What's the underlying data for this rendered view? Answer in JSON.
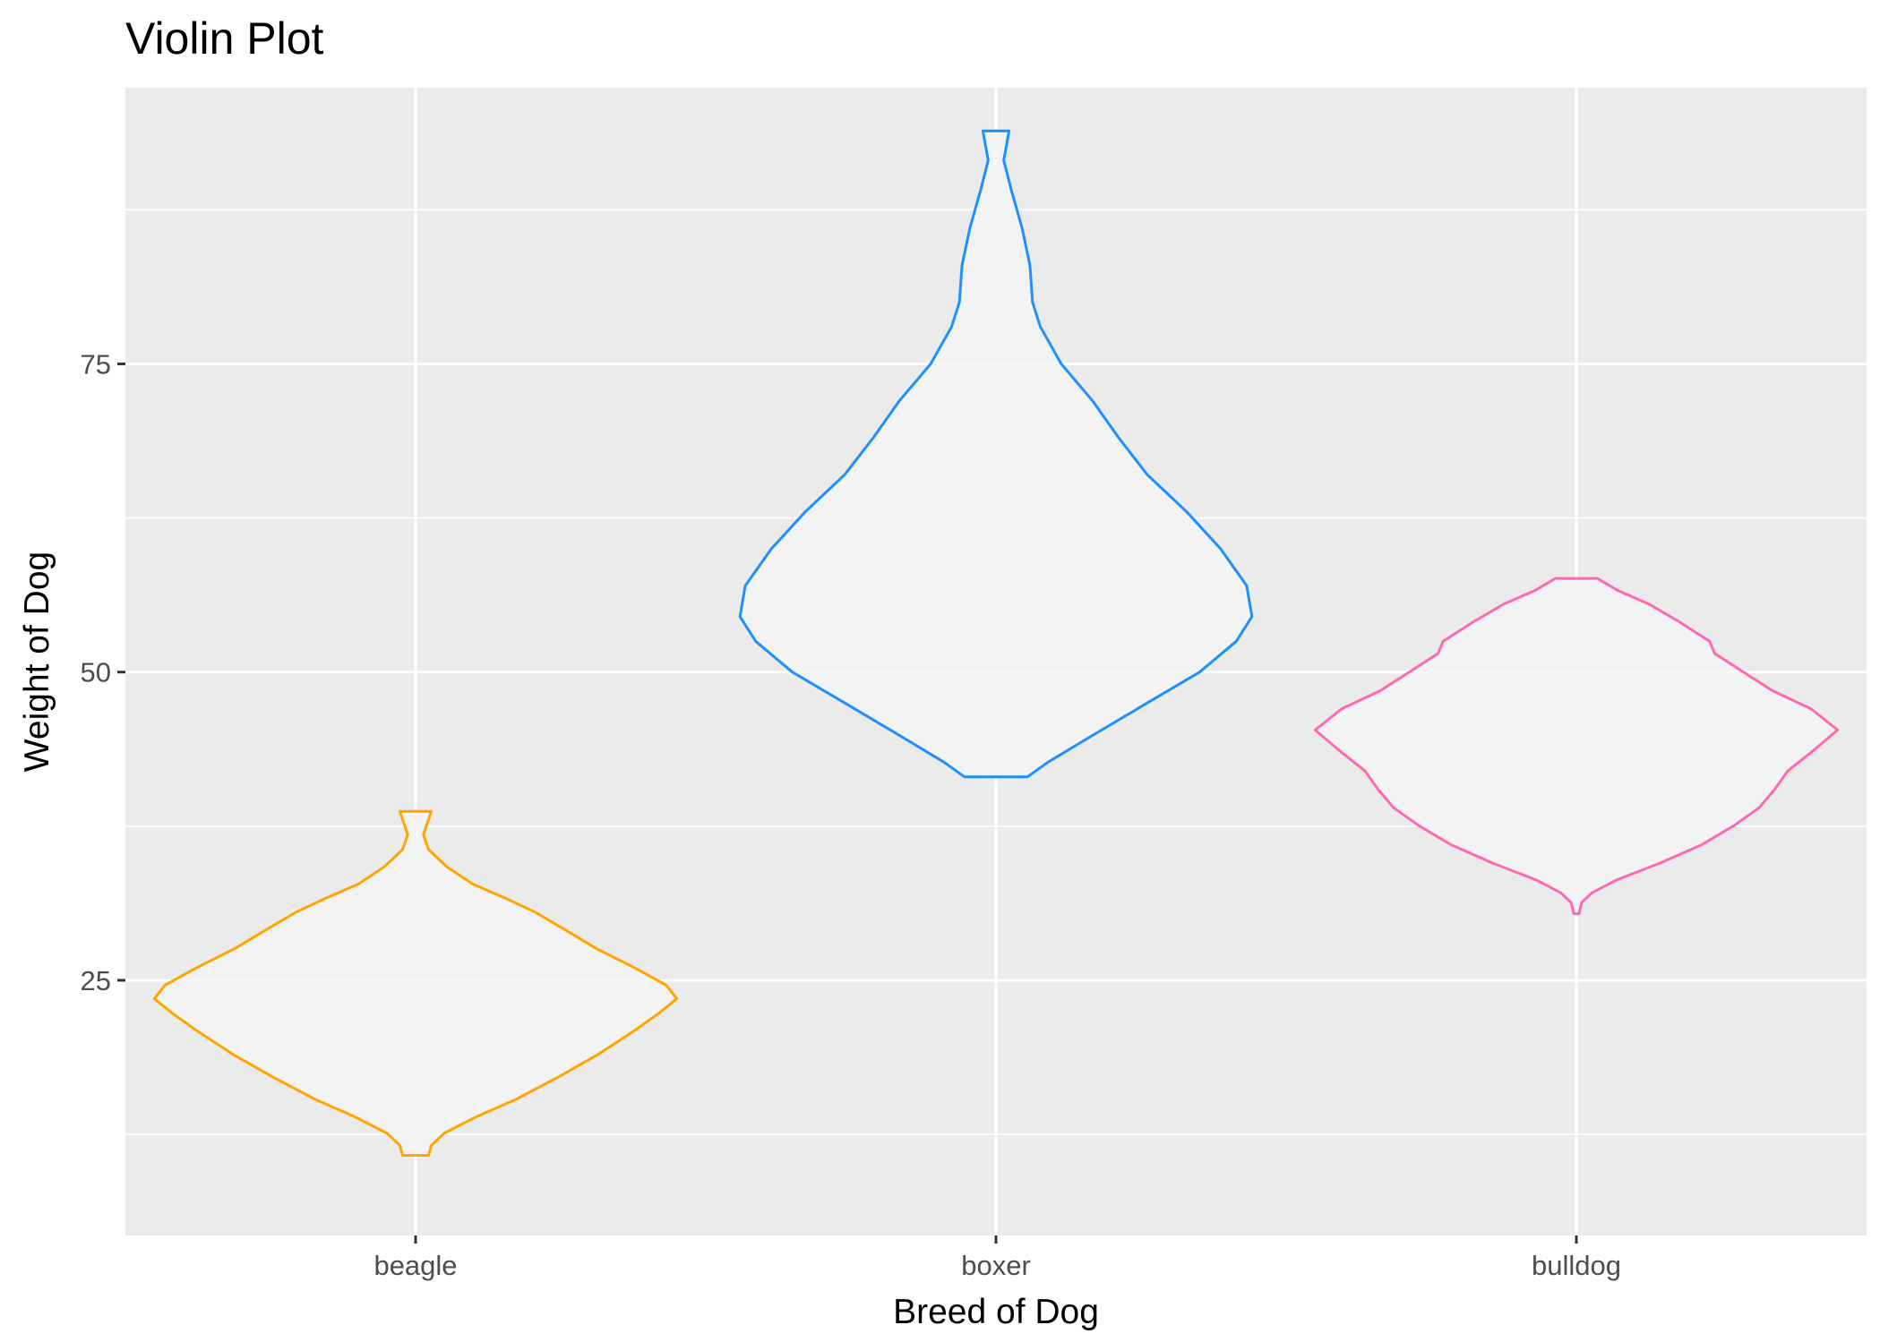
{
  "chart_data": {
    "type": "violin",
    "title": "Violin Plot",
    "xlabel": "Breed of Dog",
    "ylabel": "Weight of Dog",
    "categories": [
      "beagle",
      "boxer",
      "bulldog"
    ],
    "ylim": [
      4.3,
      97.4
    ],
    "yticks": [
      25,
      50,
      75
    ],
    "grid": true,
    "legend": "none",
    "colors": {
      "panel_background": "#EBEBEB",
      "grid": "#FFFFFF",
      "violin_fill": "#F5F5F5"
    },
    "series": [
      {
        "category": "beagle",
        "color": "#FFA500",
        "min": 10.8,
        "max": 38.7,
        "density": [
          [
            10.8,
            0.05
          ],
          [
            11.6,
            0.06
          ],
          [
            12.6,
            0.11
          ],
          [
            13.9,
            0.23
          ],
          [
            15.4,
            0.39
          ],
          [
            17.2,
            0.55
          ],
          [
            19.0,
            0.7
          ],
          [
            20.8,
            0.83
          ],
          [
            22.3,
            0.93
          ],
          [
            23.5,
            1.0
          ],
          [
            24.6,
            0.96
          ],
          [
            26.0,
            0.84
          ],
          [
            27.6,
            0.69
          ],
          [
            29.0,
            0.58
          ],
          [
            30.5,
            0.46
          ],
          [
            31.6,
            0.35
          ],
          [
            32.8,
            0.22
          ],
          [
            34.2,
            0.12
          ],
          [
            35.6,
            0.05
          ],
          [
            36.8,
            0.03
          ],
          [
            38.7,
            0.06
          ]
        ]
      },
      {
        "category": "boxer",
        "color": "#1E90FF",
        "min": 41.5,
        "max": 93.9,
        "density": [
          [
            41.5,
            0.12
          ],
          [
            42.7,
            0.2
          ],
          [
            45.0,
            0.38
          ],
          [
            47.5,
            0.58
          ],
          [
            50.0,
            0.78
          ],
          [
            52.5,
            0.92
          ],
          [
            54.5,
            0.98
          ],
          [
            57.0,
            0.96
          ],
          [
            60.0,
            0.86
          ],
          [
            63.0,
            0.73
          ],
          [
            66.0,
            0.58
          ],
          [
            69.0,
            0.47
          ],
          [
            72.0,
            0.37
          ],
          [
            75.0,
            0.25
          ],
          [
            78.0,
            0.17
          ],
          [
            80.0,
            0.14
          ],
          [
            83.0,
            0.13
          ],
          [
            86.0,
            0.1
          ],
          [
            89.0,
            0.06
          ],
          [
            91.5,
            0.03
          ],
          [
            93.9,
            0.05
          ]
        ]
      },
      {
        "category": "bulldog",
        "color": "#FF69B4",
        "min": 30.4,
        "max": 57.6,
        "density": [
          [
            30.4,
            0.01
          ],
          [
            31.3,
            0.02
          ],
          [
            32.1,
            0.06
          ],
          [
            33.1,
            0.15
          ],
          [
            34.5,
            0.32
          ],
          [
            36.0,
            0.48
          ],
          [
            37.5,
            0.6
          ],
          [
            39.0,
            0.7
          ],
          [
            40.5,
            0.76
          ],
          [
            42.0,
            0.81
          ],
          [
            43.5,
            0.9
          ],
          [
            45.3,
            1.0
          ],
          [
            47.0,
            0.9
          ],
          [
            48.5,
            0.75
          ],
          [
            50.0,
            0.64
          ],
          [
            51.5,
            0.53
          ],
          [
            52.5,
            0.51
          ],
          [
            54.0,
            0.4
          ],
          [
            55.5,
            0.28
          ],
          [
            56.6,
            0.16
          ],
          [
            57.6,
            0.08
          ]
        ]
      }
    ]
  }
}
